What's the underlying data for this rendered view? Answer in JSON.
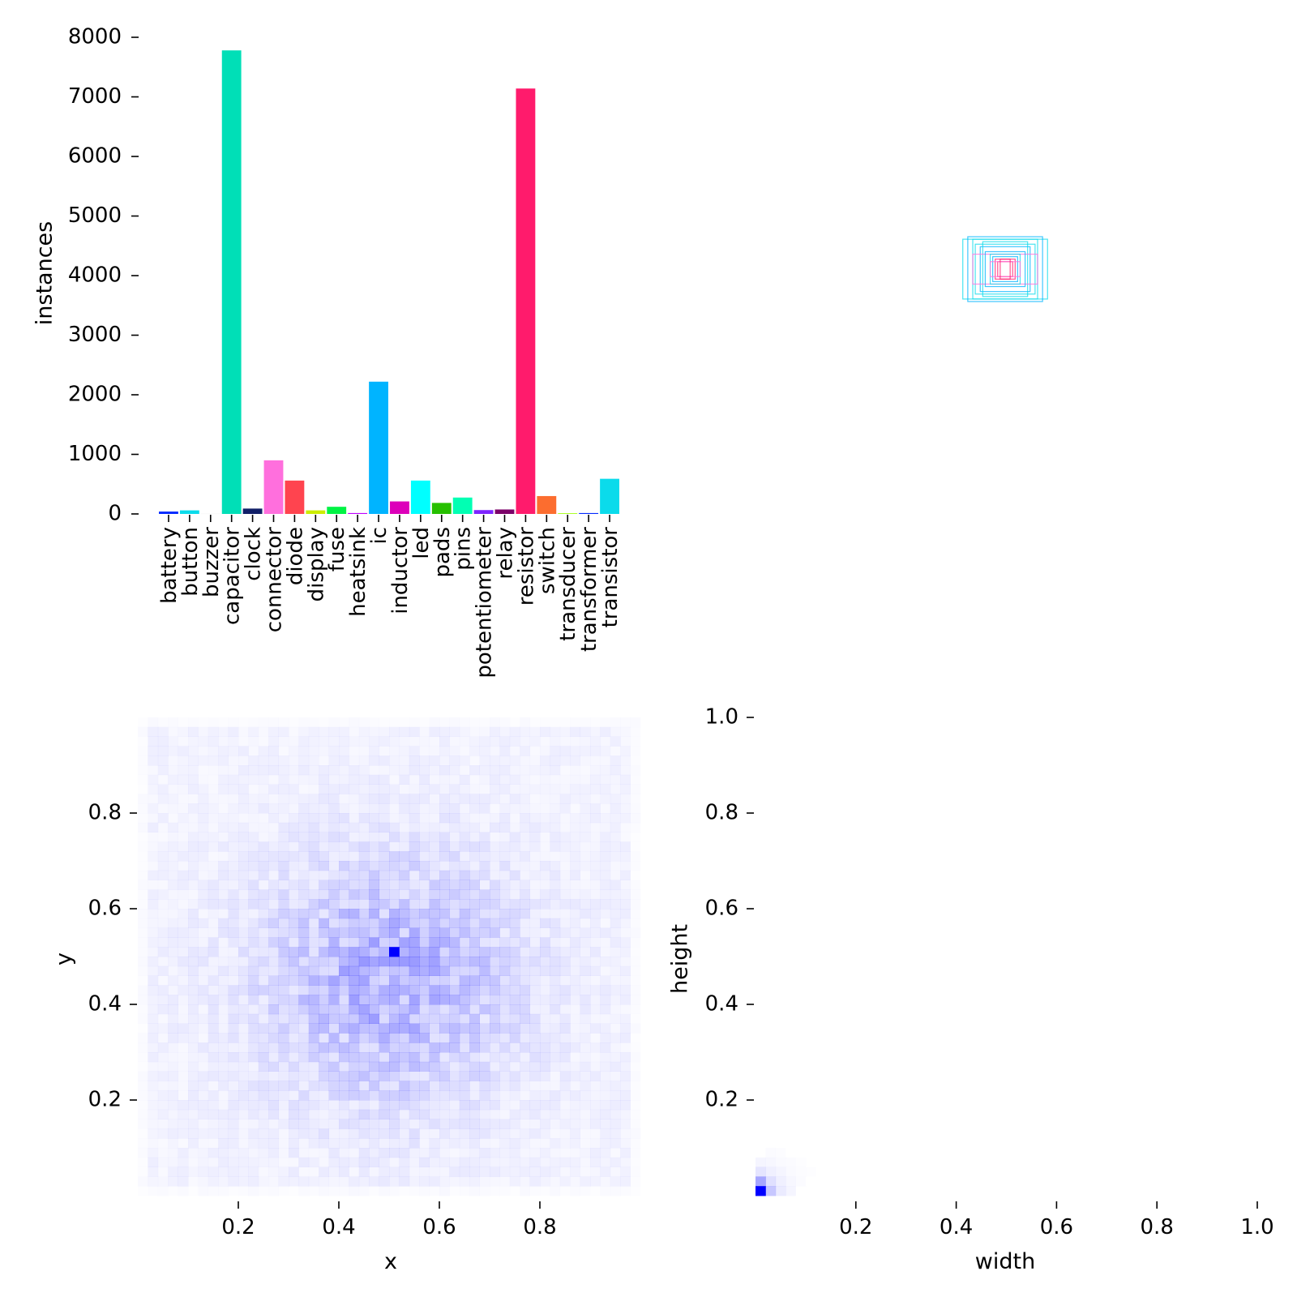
{
  "chart_data": [
    {
      "type": "bar",
      "panel": "instances-per-class",
      "ylabel": "instances",
      "xlabel": "",
      "ylim": [
        0,
        8200
      ],
      "yticks": [
        0,
        1000,
        2000,
        3000,
        4000,
        5000,
        6000,
        7000,
        8000
      ],
      "categories": [
        "battery",
        "button",
        "buzzer",
        "capacitor",
        "clock",
        "connector",
        "diode",
        "display",
        "fuse",
        "heatsink",
        "ic",
        "inductor",
        "led",
        "pads",
        "pins",
        "potentiometer",
        "relay",
        "resistor",
        "switch",
        "transducer",
        "transformer",
        "transistor"
      ],
      "values": [
        40,
        60,
        5,
        7780,
        90,
        900,
        560,
        60,
        120,
        15,
        2220,
        210,
        560,
        185,
        275,
        65,
        75,
        7140,
        300,
        12,
        15,
        590
      ],
      "colors": [
        "#042AFF",
        "#0BDBEB",
        "#F3F3F3",
        "#00DFB7",
        "#111F68",
        "#FF6FDD",
        "#FF444F",
        "#CCED00",
        "#00F344",
        "#BD00FF",
        "#00B4FF",
        "#DD00BA",
        "#00FFFF",
        "#26C000",
        "#01FFB3",
        "#7D24FF",
        "#7B0068",
        "#FF1B6C",
        "#FC6D2F",
        "#A2FF0B",
        "#042AFF",
        "#0BDBEB"
      ]
    },
    {
      "type": "box-overlay",
      "panel": "label-boxes",
      "note": "boxes centred at (0.5, 0.5), drawn with class colours",
      "boxes": [
        {
          "w": 0.17,
          "h": 0.12,
          "color": "#0BDBEB"
        },
        {
          "w": 0.15,
          "h": 0.13,
          "color": "#00B4FF"
        },
        {
          "w": 0.13,
          "h": 0.12,
          "color": "#0BDBEB"
        },
        {
          "w": 0.12,
          "h": 0.1,
          "color": "#0BDBEB"
        },
        {
          "w": 0.1,
          "h": 0.09,
          "color": "#00B4FF"
        },
        {
          "w": 0.09,
          "h": 0.11,
          "color": "#0BDBEB"
        },
        {
          "w": 0.13,
          "h": 0.06,
          "color": "#FF6FDD"
        },
        {
          "w": 0.08,
          "h": 0.07,
          "color": "#00B4FF"
        },
        {
          "w": 0.06,
          "h": 0.06,
          "color": "#0BDBEB"
        },
        {
          "w": 0.05,
          "h": 0.05,
          "color": "#00B4FF"
        },
        {
          "w": 0.04,
          "h": 0.04,
          "color": "#FF1B6C"
        },
        {
          "w": 0.03,
          "h": 0.03,
          "color": "#FF1B6C"
        },
        {
          "w": 0.06,
          "h": 0.03,
          "color": "#FF6FDD"
        },
        {
          "w": 0.02,
          "h": 0.04,
          "color": "#FF1B6C"
        }
      ]
    },
    {
      "type": "heatmap",
      "panel": "xy-distribution",
      "xlabel": "x",
      "ylabel": "y",
      "xlim": [
        0.0,
        1.0
      ],
      "ylim": [
        0.0,
        1.0
      ],
      "xticks": [
        0.2,
        0.4,
        0.6,
        0.8
      ],
      "yticks": [
        0.2,
        0.4,
        0.6,
        0.8
      ],
      "bins": 50,
      "color": "#0000FF",
      "hotspot": [
        0.51,
        0.51
      ],
      "note": "dense in the centre, fading toward edges; single peak bin near (0.5, 0.5)"
    },
    {
      "type": "heatmap",
      "panel": "wh-distribution",
      "xlabel": "width",
      "ylabel": "height",
      "xlim": [
        0.0,
        1.0
      ],
      "ylim": [
        0.0,
        1.0
      ],
      "xticks": [
        0.2,
        0.4,
        0.6,
        0.8,
        1.0
      ],
      "yticks": [
        0.2,
        0.4,
        0.6,
        0.8,
        1.0
      ],
      "bins": 50,
      "color": "#0000FF",
      "cells": [
        {
          "i": 0,
          "j": 0,
          "v": 1.0
        },
        {
          "i": 1,
          "j": 0,
          "v": 0.22
        },
        {
          "i": 0,
          "j": 1,
          "v": 0.35
        },
        {
          "i": 1,
          "j": 1,
          "v": 0.12
        },
        {
          "i": 2,
          "j": 0,
          "v": 0.08
        },
        {
          "i": 0,
          "j": 2,
          "v": 0.1
        },
        {
          "i": 2,
          "j": 1,
          "v": 0.06
        },
        {
          "i": 1,
          "j": 2,
          "v": 0.06
        },
        {
          "i": 2,
          "j": 2,
          "v": 0.04
        },
        {
          "i": 3,
          "j": 0,
          "v": 0.04
        },
        {
          "i": 0,
          "j": 3,
          "v": 0.04
        },
        {
          "i": 3,
          "j": 1,
          "v": 0.03
        },
        {
          "i": 1,
          "j": 3,
          "v": 0.03
        },
        {
          "i": 3,
          "j": 2,
          "v": 0.02
        },
        {
          "i": 2,
          "j": 3,
          "v": 0.02
        },
        {
          "i": 4,
          "j": 1,
          "v": 0.015
        },
        {
          "i": 1,
          "j": 4,
          "v": 0.015
        },
        {
          "i": 3,
          "j": 3,
          "v": 0.015
        },
        {
          "i": 4,
          "j": 2,
          "v": 0.01
        },
        {
          "i": 2,
          "j": 4,
          "v": 0.01
        },
        {
          "i": 5,
          "j": 2,
          "v": 0.008
        },
        {
          "i": 4,
          "j": 3,
          "v": 0.008
        }
      ]
    }
  ]
}
